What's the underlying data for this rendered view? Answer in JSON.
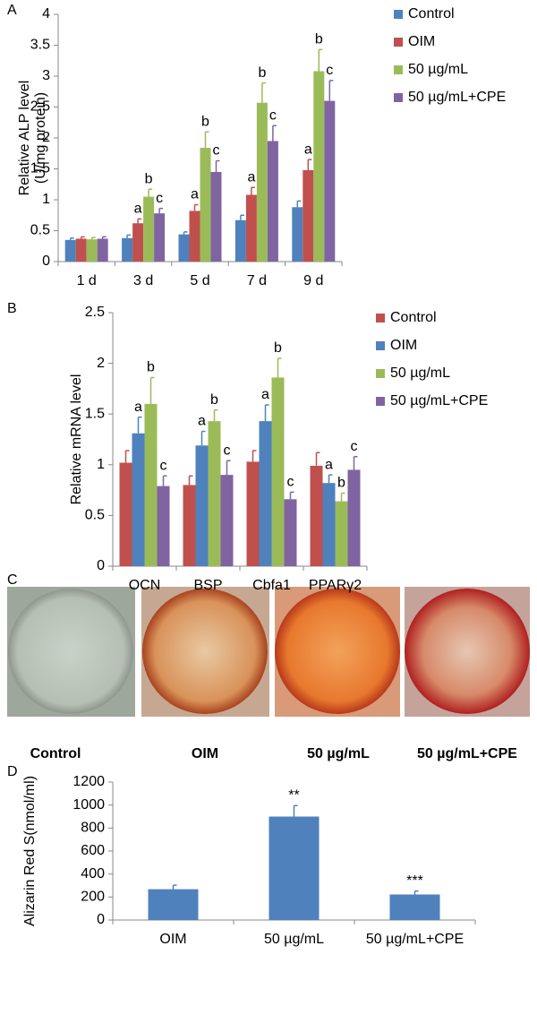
{
  "chart_data": [
    {
      "type": "bar",
      "panel_label": "A",
      "y_label": [
        "Relative ALP level",
        "(U/mg protein)"
      ],
      "categories": [
        "1 d",
        "3 d",
        "5 d",
        "7 d",
        "9 d"
      ],
      "series": [
        {
          "name": "Control",
          "color": "#4f81bd",
          "values": [
            0.35,
            0.38,
            0.44,
            0.67,
            0.88
          ],
          "errors": [
            0.03,
            0.05,
            0.04,
            0.08,
            0.1
          ],
          "annotations": [
            null,
            null,
            null,
            null,
            null
          ]
        },
        {
          "name": "OIM",
          "color": "#c0504d",
          "values": [
            0.37,
            0.62,
            0.82,
            1.08,
            1.48
          ],
          "errors": [
            0.03,
            0.07,
            0.1,
            0.12,
            0.17
          ],
          "annotations": [
            null,
            "a",
            "a",
            "a",
            "a"
          ]
        },
        {
          "name": "50 µg/mL",
          "color": "#9bbb59",
          "values": [
            0.36,
            1.05,
            1.84,
            2.57,
            3.08
          ],
          "errors": [
            0.03,
            0.12,
            0.26,
            0.32,
            0.35
          ],
          "annotations": [
            null,
            "b",
            "b",
            "b",
            "b"
          ]
        },
        {
          "name": "50 µg/mL+CPE",
          "color": "#8064a2",
          "values": [
            0.37,
            0.78,
            1.45,
            1.95,
            2.6
          ],
          "errors": [
            0.03,
            0.08,
            0.18,
            0.25,
            0.33
          ],
          "annotations": [
            null,
            "c",
            "c",
            "c",
            "c"
          ]
        }
      ],
      "ylim": [
        0,
        4
      ],
      "yticks": [
        0,
        0.5,
        1,
        1.5,
        2,
        2.5,
        3,
        3.5,
        4
      ],
      "legend": "right"
    },
    {
      "type": "bar",
      "panel_label": "B",
      "y_label": [
        "Relative mRNA level"
      ],
      "categories": [
        "OCN",
        "BSP",
        "Cbfa1",
        "PPARγ2"
      ],
      "series": [
        {
          "name": "Control",
          "color": "#c0504d",
          "values": [
            1.02,
            0.8,
            1.03,
            0.99
          ],
          "errors": [
            0.12,
            0.09,
            0.11,
            0.13
          ],
          "annotations": [
            null,
            null,
            null,
            null
          ]
        },
        {
          "name": "OIM",
          "color": "#4f81bd",
          "values": [
            1.31,
            1.19,
            1.43,
            0.82
          ],
          "errors": [
            0.16,
            0.14,
            0.16,
            0.08
          ],
          "annotations": [
            "a",
            "a",
            "a",
            "a"
          ]
        },
        {
          "name": "50 µg/mL",
          "color": "#9bbb59",
          "values": [
            1.6,
            1.43,
            1.86,
            0.64
          ],
          "errors": [
            0.26,
            0.11,
            0.19,
            0.08
          ],
          "annotations": [
            "b",
            "b",
            "b",
            "b"
          ]
        },
        {
          "name": "50 µg/mL+CPE",
          "color": "#8064a2",
          "values": [
            0.79,
            0.9,
            0.66,
            0.95
          ],
          "errors": [
            0.1,
            0.14,
            0.07,
            0.13
          ],
          "annotations": [
            "c",
            "c",
            "c",
            "c"
          ]
        }
      ],
      "ylim": [
        0,
        2.5
      ],
      "yticks": [
        0,
        0.5,
        1,
        1.5,
        2,
        2.5
      ],
      "legend": "right"
    },
    {
      "type": "bar",
      "panel_label": "D",
      "y_label": [
        "Alizarin Red S(nmol/ml)"
      ],
      "categories": [
        "OIM",
        "50 µg/mL",
        "50 µg/mL+CPE"
      ],
      "series": [
        {
          "name": null,
          "color": "#4f81bd",
          "values": [
            268,
            900,
            222
          ],
          "errors": [
            35,
            95,
            30
          ],
          "annotations": [
            null,
            "**",
            "***"
          ]
        }
      ],
      "ylim": [
        0,
        1200
      ],
      "yticks": [
        0,
        200,
        400,
        600,
        800,
        1000,
        1200
      ],
      "legend": null
    }
  ],
  "photo_panel": {
    "panel_label": "C",
    "captions": [
      "Control",
      "OIM",
      "50 µg/mL",
      "50 µg/mL+CPE"
    ]
  }
}
